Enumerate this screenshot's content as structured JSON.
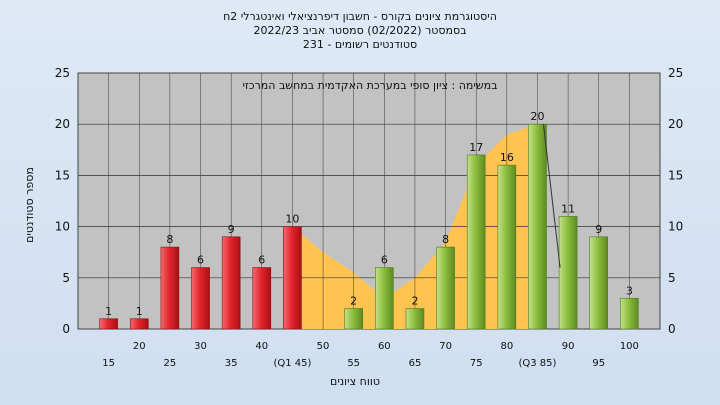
{
  "chart_data": {
    "type": "bar",
    "title_lines": [
      "היסטוגרמת ציונים בקורס - חשבון דיפרנציאלי ואינטגרלי 2ח",
      "בסמסטר  (02/2022)  סמסטר אביב 2022/23",
      "סטודנטים רשומים - 231"
    ],
    "annotation": "במשימה : ציון סופי במערכת האקדמית במחשב המרכזי",
    "xlabel": "טווח ציונים",
    "ylabel": "מספר סטודנטים",
    "ylim": [
      0,
      25
    ],
    "yticks": [
      0,
      5,
      10,
      15,
      20,
      25
    ],
    "grid": true,
    "legend": "none",
    "x_tick_labels": [
      "15",
      "20",
      "25",
      "30",
      "35",
      "40",
      "(Q1 45)",
      "50",
      "55",
      "60",
      "65",
      "70",
      "75",
      "80",
      "(Q3 85)",
      "90",
      "95",
      "100"
    ],
    "bars": [
      {
        "x": 15,
        "value": 1,
        "group": "fail"
      },
      {
        "x": 20,
        "value": 1,
        "group": "fail"
      },
      {
        "x": 25,
        "value": 8,
        "group": "fail"
      },
      {
        "x": 30,
        "value": 6,
        "group": "fail"
      },
      {
        "x": 35,
        "value": 9,
        "group": "fail"
      },
      {
        "x": 40,
        "value": 6,
        "group": "fail"
      },
      {
        "x": 45,
        "value": 10,
        "group": "fail"
      },
      {
        "x": 55,
        "value": 2,
        "group": "pass"
      },
      {
        "x": 60,
        "value": 6,
        "group": "pass"
      },
      {
        "x": 65,
        "value": 2,
        "group": "pass"
      },
      {
        "x": 70,
        "value": 8,
        "group": "pass"
      },
      {
        "x": 75,
        "value": 17,
        "group": "pass"
      },
      {
        "x": 80,
        "value": 16,
        "group": "pass"
      },
      {
        "x": 85,
        "value": 20,
        "group": "pass"
      },
      {
        "x": 90,
        "value": 11,
        "group": "pass"
      },
      {
        "x": 95,
        "value": 9,
        "group": "pass"
      },
      {
        "x": 100,
        "value": 3,
        "group": "pass"
      }
    ],
    "area": [
      {
        "x": 45,
        "value": 10
      },
      {
        "x": 50,
        "value": 7.5
      },
      {
        "x": 55,
        "value": 5.5
      },
      {
        "x": 60,
        "value": 3
      },
      {
        "x": 65,
        "value": 5
      },
      {
        "x": 70,
        "value": 8.5
      },
      {
        "x": 75,
        "value": 16
      },
      {
        "x": 80,
        "value": 19
      },
      {
        "x": 85,
        "value": 20
      }
    ],
    "colors": {
      "fail": "#e4262d",
      "pass": "#8dbf3e",
      "area": "#ffc44f",
      "plot_bg": "#c2c2c2",
      "grid": "#333333"
    }
  }
}
